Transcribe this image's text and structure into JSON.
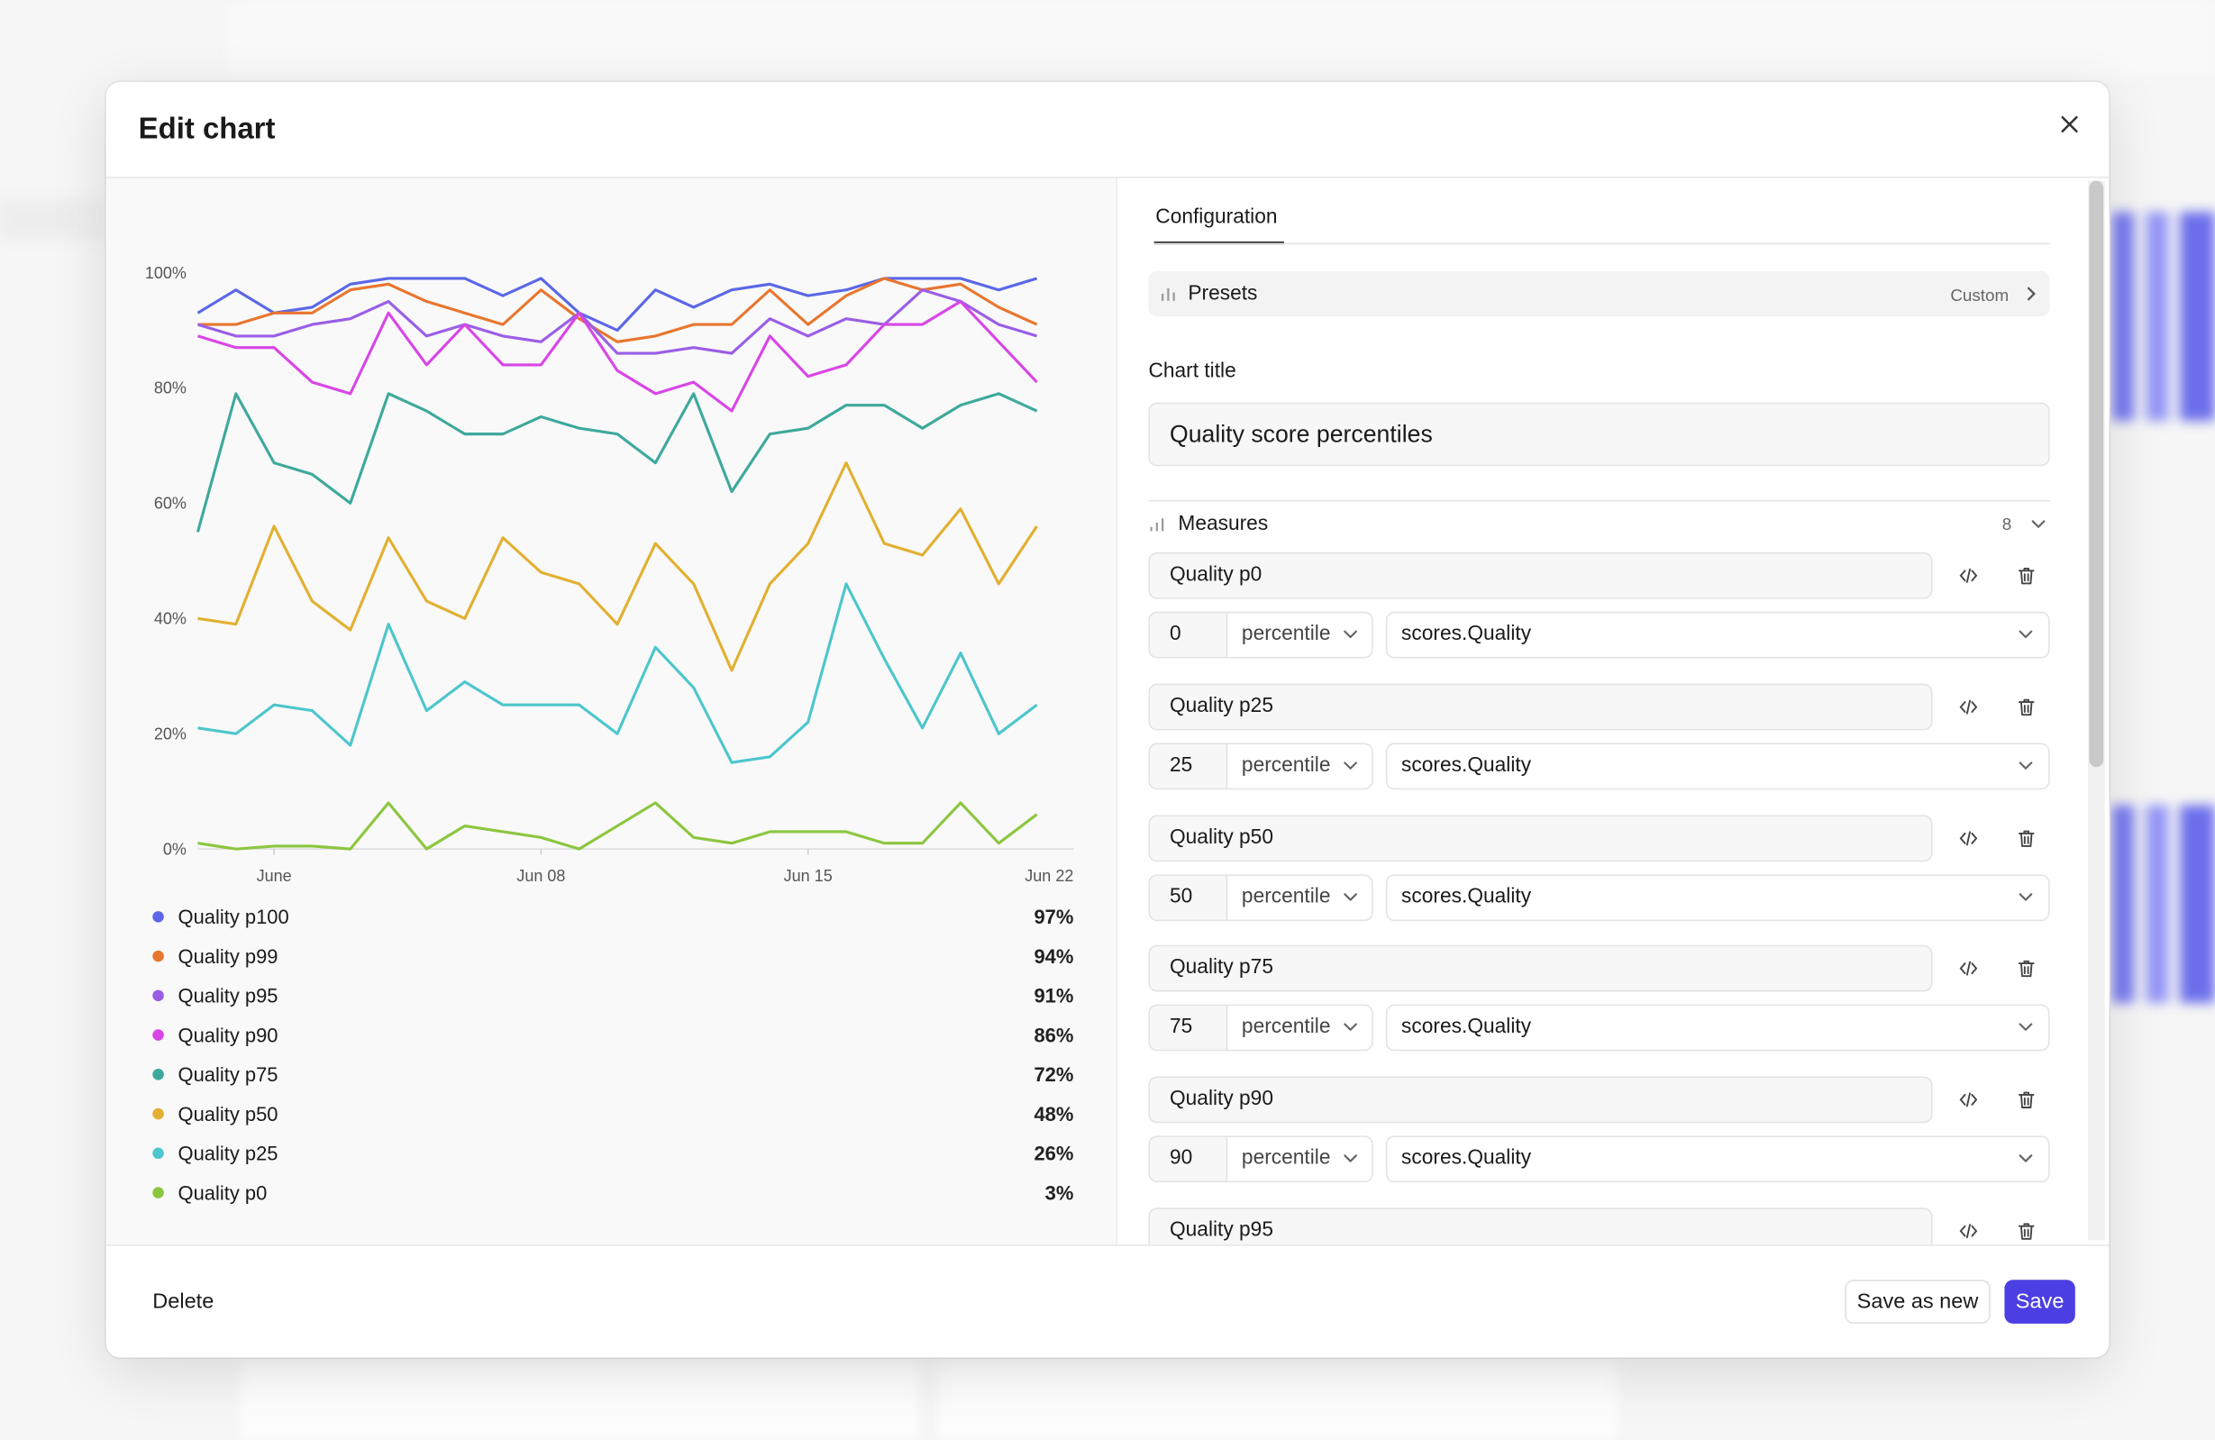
{
  "modal": {
    "title": "Edit chart"
  },
  "chart_data": {
    "type": "line",
    "categories": [
      null,
      null,
      "June",
      null,
      null,
      null,
      null,
      null,
      null,
      "Jun 08",
      null,
      null,
      null,
      null,
      null,
      null,
      "Jun 15",
      null,
      null,
      null,
      null,
      null,
      null,
      "Jun 22"
    ],
    "ylim": [
      0,
      100
    ],
    "yticks": [
      {
        "value": 0,
        "label": "0%"
      },
      {
        "value": 20,
        "label": "20%"
      },
      {
        "value": 40,
        "label": "40%"
      },
      {
        "value": 60,
        "label": "60%"
      },
      {
        "value": 80,
        "label": "80%"
      },
      {
        "value": 100,
        "label": "100%"
      }
    ],
    "series": [
      {
        "name": "Quality p100",
        "color": "#5b67e6",
        "summary": "97%",
        "values": [
          93,
          97,
          93,
          94,
          98,
          99,
          99,
          99,
          96,
          99,
          93,
          90,
          97,
          94,
          97,
          98,
          96,
          97,
          99,
          99,
          99,
          97,
          99,
          null
        ]
      },
      {
        "name": "Quality p99",
        "color": "#e8762e",
        "summary": "94%",
        "values": [
          91,
          91,
          93,
          93,
          97,
          98,
          95,
          93,
          91,
          97,
          92,
          88,
          89,
          91,
          91,
          97,
          91,
          96,
          99,
          97,
          98,
          94,
          91,
          null
        ]
      },
      {
        "name": "Quality p95",
        "color": "#9a5ee6",
        "summary": "91%",
        "values": [
          91,
          89,
          89,
          91,
          92,
          95,
          89,
          91,
          89,
          88,
          93,
          86,
          86,
          87,
          86,
          92,
          89,
          92,
          91,
          97,
          95,
          91,
          89,
          null
        ]
      },
      {
        "name": "Quality p90",
        "color": "#d846e6",
        "summary": "86%",
        "values": [
          89,
          87,
          87,
          81,
          79,
          93,
          84,
          91,
          84,
          84,
          93,
          83,
          79,
          81,
          76,
          89,
          82,
          84,
          91,
          91,
          95,
          88,
          81,
          null
        ]
      },
      {
        "name": "Quality p75",
        "color": "#3ea99c",
        "summary": "72%",
        "values": [
          55,
          79,
          67,
          65,
          60,
          79,
          76,
          72,
          72,
          75,
          73,
          72,
          67,
          79,
          62,
          72,
          73,
          77,
          77,
          73,
          77,
          79,
          76,
          null
        ]
      },
      {
        "name": "Quality p50",
        "color": "#e2b031",
        "summary": "48%",
        "values": [
          40,
          39,
          56,
          43,
          38,
          54,
          43,
          40,
          54,
          48,
          46,
          39,
          53,
          46,
          31,
          46,
          53,
          67,
          53,
          51,
          59,
          46,
          56,
          null
        ]
      },
      {
        "name": "Quality p25",
        "color": "#4dc6cc",
        "summary": "26%",
        "values": [
          21,
          20,
          25,
          24,
          18,
          39,
          24,
          29,
          25,
          25,
          25,
          20,
          35,
          28,
          15,
          16,
          22,
          46,
          33,
          21,
          34,
          20,
          25,
          null
        ]
      },
      {
        "name": "Quality p0",
        "color": "#8cc63f",
        "summary": "3%",
        "values": [
          1,
          0,
          0.5,
          0.5,
          0,
          8,
          0,
          4,
          3,
          2,
          0,
          4,
          8,
          2,
          1,
          3,
          3,
          3,
          1,
          1,
          8,
          1,
          6,
          null
        ]
      }
    ]
  },
  "config": {
    "tab": "Configuration",
    "presets_label": "Presets",
    "presets_value": "Custom",
    "chart_title_label": "Chart title",
    "chart_title": "Quality score percentiles",
    "measures_label": "Measures",
    "measures_count": 8,
    "measures": [
      {
        "name": "Quality p0",
        "percentile": 0,
        "aggregation": "percentile",
        "field": "scores.Quality"
      },
      {
        "name": "Quality p25",
        "percentile": 25,
        "aggregation": "percentile",
        "field": "scores.Quality"
      },
      {
        "name": "Quality p50",
        "percentile": 50,
        "aggregation": "percentile",
        "field": "scores.Quality"
      },
      {
        "name": "Quality p75",
        "percentile": 75,
        "aggregation": "percentile",
        "field": "scores.Quality"
      },
      {
        "name": "Quality p90",
        "percentile": 90,
        "aggregation": "percentile",
        "field": "scores.Quality"
      },
      {
        "name": "Quality p95"
      }
    ]
  },
  "footer": {
    "delete": "Delete",
    "save_as_new": "Save as new",
    "save": "Save"
  }
}
